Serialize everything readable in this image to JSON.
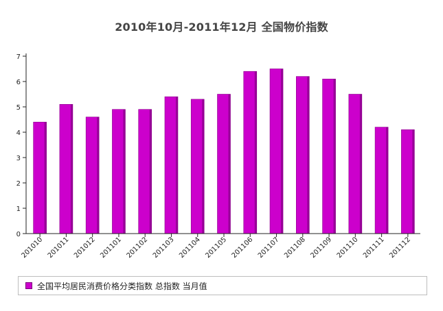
{
  "chart_data": {
    "type": "bar",
    "title": "2010年10月-2011年12月 全国物价指数",
    "xlabel": "",
    "ylabel": "",
    "ylim": [
      0,
      7
    ],
    "yticks": [
      "0",
      "1",
      "2",
      "3",
      "4",
      "5",
      "6",
      "7"
    ],
    "grid": false,
    "legend_position": "bottom",
    "categories": [
      "201010",
      "201011",
      "201012",
      "201101",
      "201102",
      "201103",
      "201104",
      "201105",
      "201106",
      "201107",
      "201108",
      "201109",
      "201110",
      "201111",
      "201112"
    ],
    "series": [
      {
        "name": "全国平均居民消费价格分类指数 总指数 当月值",
        "color": "#cc00cc",
        "values": [
          4.4,
          5.1,
          4.6,
          4.9,
          4.9,
          5.4,
          5.3,
          5.5,
          6.4,
          6.5,
          6.2,
          6.1,
          5.5,
          4.2,
          4.1
        ]
      }
    ]
  }
}
